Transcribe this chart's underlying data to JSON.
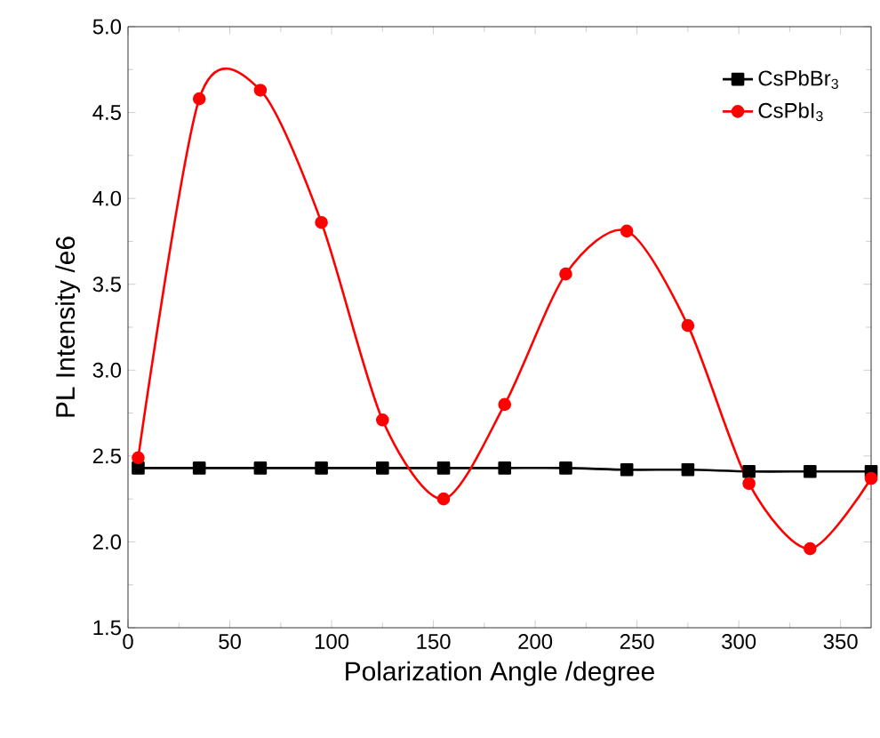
{
  "chart_data": {
    "type": "line",
    "xlabel": "Polarization Angle /degree",
    "ylabel": "PL Intensity /e6",
    "x": [
      5,
      35,
      65,
      95,
      125,
      155,
      185,
      215,
      245,
      275,
      305,
      335,
      365
    ],
    "series": [
      {
        "name": "CsPbBr$_{3}$",
        "color": "#000000",
        "marker": "square",
        "values": [
          2.43,
          2.43,
          2.43,
          2.43,
          2.43,
          2.43,
          2.43,
          2.43,
          2.42,
          2.42,
          2.41,
          2.41,
          2.41
        ]
      },
      {
        "name": "CsPbI$_{3}$",
        "color": "#ff0000",
        "marker": "circle",
        "values": [
          2.49,
          4.58,
          4.63,
          3.86,
          2.71,
          2.25,
          2.8,
          3.56,
          3.81,
          3.26,
          2.34,
          1.96,
          2.37
        ]
      }
    ],
    "xlim": [
      0,
      365
    ],
    "ylim": [
      1.5,
      5.0
    ],
    "xticks": [
      0,
      50,
      100,
      150,
      200,
      250,
      300,
      350
    ],
    "yticks": [
      {
        "value": 1.5,
        "label": "1.5"
      },
      {
        "value": 2.0,
        "label": "2.0"
      },
      {
        "value": 2.5,
        "label": "2.5"
      },
      {
        "value": 3.0,
        "label": "3.0"
      },
      {
        "value": 3.5,
        "label": "3.5"
      },
      {
        "value": 4.0,
        "label": "4.0"
      },
      {
        "value": 4.5,
        "label": "4.5"
      },
      {
        "value": 5.0,
        "label": "5.0"
      }
    ],
    "legend": "top right",
    "grid": false
  }
}
